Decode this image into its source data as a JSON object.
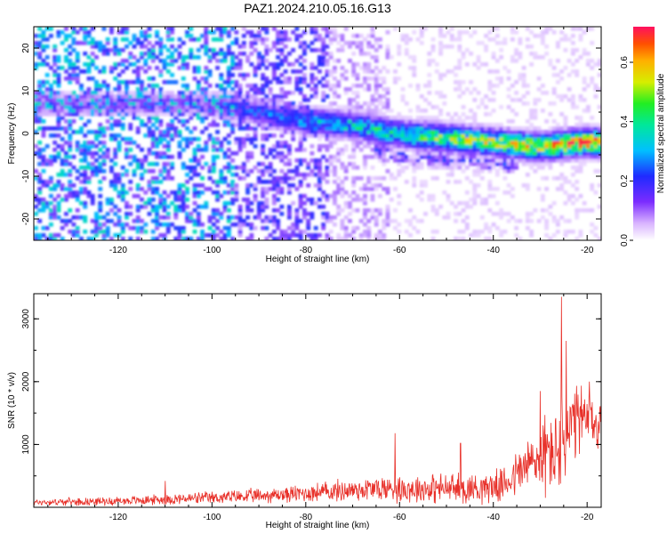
{
  "figure": {
    "title": "PAZ1.2024.210.05.16.G13"
  },
  "chart_data": [
    {
      "type": "heatmap",
      "xlabel": "Height of straight line (km)",
      "ylabel": "Frequency (Hz)",
      "xlim": [
        -138,
        -17
      ],
      "ylim": [
        -25,
        25
      ],
      "xticks": [
        -120,
        -100,
        -80,
        -60,
        -40,
        -20
      ],
      "yticks": [
        -20,
        -10,
        0,
        10,
        20
      ],
      "grid": false,
      "colorbar": {
        "label": "Normalized spectral amplitude",
        "range": [
          0.0,
          0.72
        ],
        "ticks": [
          "0.0",
          "0.2",
          "0.4",
          "0.6"
        ],
        "colormap": "rainbow (white, violet, blue, cyan, green, yellow, orange, red)"
      },
      "ridge_center_hz": [
        {
          "x": -100,
          "y": 7
        },
        {
          "x": -90,
          "y": 5
        },
        {
          "x": -80,
          "y": 3
        },
        {
          "x": -70,
          "y": 2
        },
        {
          "x": -60,
          "y": 0
        },
        {
          "x": -50,
          "y": -1
        },
        {
          "x": -40,
          "y": -2
        },
        {
          "x": -30,
          "y": -3
        },
        {
          "x": -20,
          "y": -2
        }
      ],
      "peak_amplitude": {
        "x": -20,
        "y": -2,
        "value": 0.7
      }
    },
    {
      "type": "line",
      "xlabel": "Height of straight line (km)",
      "ylabel": "SNR (10 * v/v)",
      "xlim": [
        -138,
        -17
      ],
      "ylim": [
        0,
        3400
      ],
      "xticks": [
        -120,
        -100,
        -80,
        -60,
        -40,
        -20
      ],
      "yticks": [
        1000,
        2000,
        3000
      ],
      "grid": false,
      "series": [
        {
          "color": "#e8312a",
          "envelope": [
            {
              "x": -138,
              "mean": 80,
              "spread": 60
            },
            {
              "x": -120,
              "mean": 100,
              "spread": 80
            },
            {
              "x": -100,
              "mean": 150,
              "spread": 120
            },
            {
              "x": -85,
              "mean": 200,
              "spread": 150
            },
            {
              "x": -75,
              "mean": 250,
              "spread": 200
            },
            {
              "x": -65,
              "mean": 300,
              "spread": 250
            },
            {
              "x": -55,
              "mean": 300,
              "spread": 280
            },
            {
              "x": -45,
              "mean": 300,
              "spread": 300
            },
            {
              "x": -38,
              "mean": 350,
              "spread": 300
            },
            {
              "x": -34,
              "mean": 600,
              "spread": 500
            },
            {
              "x": -30,
              "mean": 800,
              "spread": 700
            },
            {
              "x": -27,
              "mean": 900,
              "spread": 900
            },
            {
              "x": -25,
              "mean": 1000,
              "spread": 1000
            },
            {
              "x": -22,
              "mean": 1400,
              "spread": 700
            },
            {
              "x": -17,
              "mean": 1300,
              "spread": 500
            }
          ],
          "peaks": [
            {
              "x": -110,
              "y": 420
            },
            {
              "x": -61,
              "y": 1180
            },
            {
              "x": -47,
              "y": 1020
            },
            {
              "x": -30,
              "y": 1850
            },
            {
              "x": -25.5,
              "y": 3350
            },
            {
              "x": -24.5,
              "y": 2650
            },
            {
              "x": -19.5,
              "y": 2000
            }
          ]
        }
      ]
    }
  ]
}
